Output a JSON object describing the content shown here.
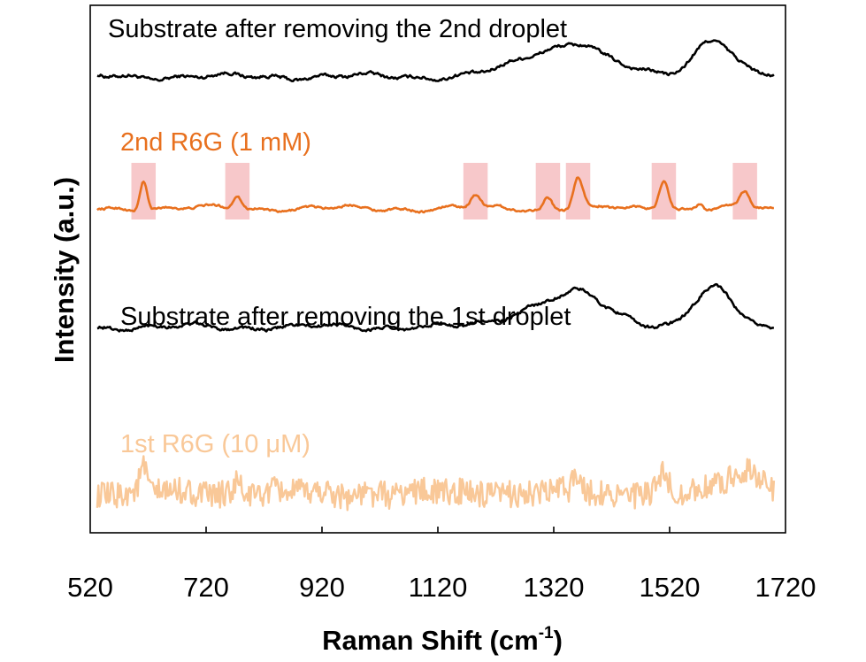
{
  "chart_data": {
    "type": "line",
    "title": "",
    "xlabel": "Raman Shift (cm",
    "xlabel_sup": "-1",
    "xlabel_close": ")",
    "ylabel": "Intensity (a.u.)",
    "xlim": [
      520,
      1720
    ],
    "x_ticks": [
      520,
      720,
      920,
      1120,
      1320,
      1520,
      1720
    ],
    "x_tick_labels": [
      "520",
      "720",
      "920",
      "1120",
      "1320",
      "1520",
      "1720"
    ],
    "y_ticks": "none",
    "highlight_color": "#f4b6b8",
    "highlight_bands": [
      {
        "center": 612,
        "width": 42
      },
      {
        "center": 774,
        "width": 42
      },
      {
        "center": 1185,
        "width": 42
      },
      {
        "center": 1310,
        "width": 42
      },
      {
        "center": 1362,
        "width": 42
      },
      {
        "center": 1510,
        "width": 42
      },
      {
        "center": 1650,
        "width": 42
      }
    ],
    "series": [
      {
        "name": "Substrate after removing the 2nd droplet",
        "color": "#000000",
        "baseline": 0.865,
        "noise": 0.006,
        "peaks": [
          {
            "center": 1340,
            "height": 0.058,
            "width": 70
          },
          {
            "center": 1372,
            "height": 0.012,
            "width": 20
          },
          {
            "center": 1595,
            "height": 0.072,
            "width": 33
          }
        ]
      },
      {
        "name": "2nd R6G (1 mM)",
        "color": "#e8701e",
        "baseline": 0.615,
        "noise": 0.004,
        "peaks": [
          {
            "center": 612,
            "height": 0.058,
            "width": 6
          },
          {
            "center": 774,
            "height": 0.027,
            "width": 7
          },
          {
            "center": 1185,
            "height": 0.025,
            "width": 8
          },
          {
            "center": 1310,
            "height": 0.022,
            "width": 7
          },
          {
            "center": 1362,
            "height": 0.058,
            "width": 8
          },
          {
            "center": 1510,
            "height": 0.059,
            "width": 8
          },
          {
            "center": 1572,
            "height": 0.01,
            "width": 6
          },
          {
            "center": 1650,
            "height": 0.029,
            "width": 8
          }
        ]
      },
      {
        "name": "Substrate after removing the 1st droplet",
        "color": "#000000",
        "baseline": 0.39,
        "noise": 0.006,
        "peaks": [
          {
            "center": 1340,
            "height": 0.058,
            "width": 70
          },
          {
            "center": 1372,
            "height": 0.012,
            "width": 20
          },
          {
            "center": 1595,
            "height": 0.072,
            "width": 33
          }
        ]
      },
      {
        "name": "1st R6G (10 μM)",
        "color": "#f9c898",
        "baseline": 0.075,
        "noise": 0.026,
        "peaks": [
          {
            "center": 612,
            "height": 0.045,
            "width": 6
          },
          {
            "center": 774,
            "height": 0.02,
            "width": 7
          },
          {
            "center": 1362,
            "height": 0.035,
            "width": 8
          },
          {
            "center": 1510,
            "height": 0.035,
            "width": 8
          },
          {
            "center": 1650,
            "height": 0.045,
            "width": 30
          }
        ]
      }
    ]
  }
}
